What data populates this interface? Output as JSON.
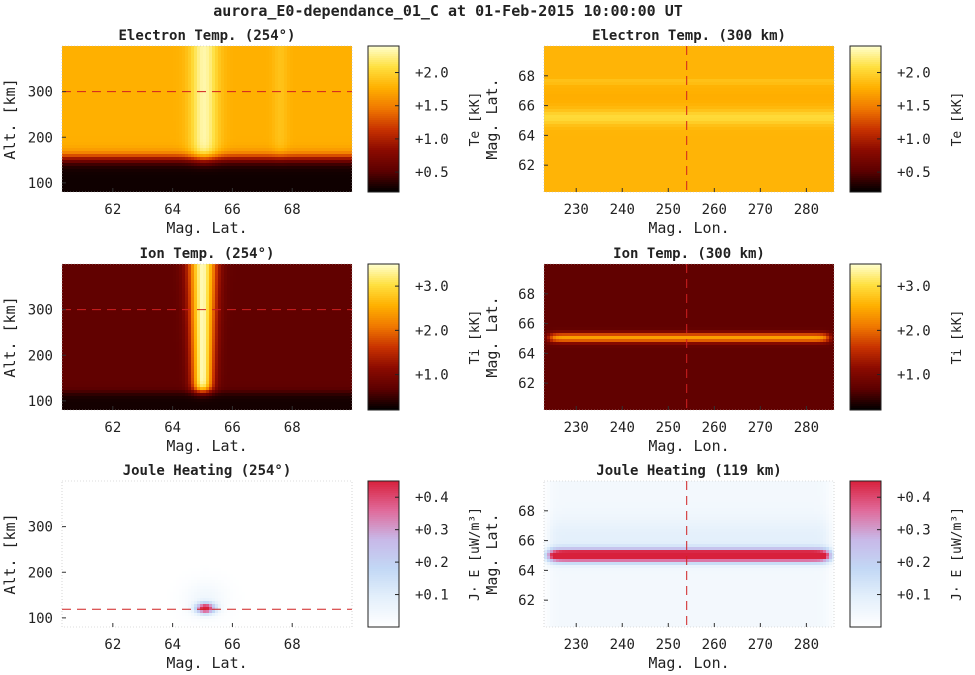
{
  "suptitle": "aurora_E0-dependance_01_C at 01-Feb-2015 10:00:00 UT",
  "colors": {
    "heat_cmap": [
      "#000000",
      "#5c0000",
      "#8b0a00",
      "#c83200",
      "#f07800",
      "#ffb000",
      "#ffe040",
      "#ffffd0"
    ],
    "joule_cmap": [
      "#ffffff",
      "#e4f0fb",
      "#c2d8f5",
      "#c8b8e8",
      "#e06a9a",
      "#d8203c"
    ],
    "cut_line": "#d02020"
  },
  "chart_data": [
    {
      "id": "te_alt",
      "type": "heatmap",
      "title": "Electron Temp. (254°)",
      "xlabel": "Mag. Lat.",
      "ylabel": "Alt. [km]",
      "xlim": [
        60.3,
        70.0
      ],
      "ylim": [
        80,
        400
      ],
      "xticks": [
        62,
        64,
        66,
        68
      ],
      "yticks": [
        100,
        200,
        300
      ],
      "cut": {
        "axis": "y",
        "value": 300
      },
      "colorbar": {
        "label": "Te [kK]",
        "range": [
          0.2,
          2.4
        ],
        "ticks": [
          "+0.5",
          "+1.0",
          "+1.5",
          "+2.0"
        ],
        "tick_values": [
          0.5,
          1.0,
          1.5,
          2.0
        ],
        "cmap": "heat"
      }
    },
    {
      "id": "te_lon",
      "type": "heatmap",
      "title": "Electron Temp. (300 km)",
      "xlabel": "Mag. Lon.",
      "ylabel": "Mag. Lat.",
      "xlim": [
        223,
        286
      ],
      "ylim": [
        60.2,
        70.0
      ],
      "xticks": [
        230,
        240,
        250,
        260,
        270,
        280
      ],
      "yticks": [
        62,
        64,
        66,
        68
      ],
      "cut": {
        "axis": "x",
        "value": 254
      },
      "colorbar": {
        "label": "Te [kK]",
        "range": [
          0.2,
          2.4
        ],
        "ticks": [
          "+0.5",
          "+1.0",
          "+1.5",
          "+2.0"
        ],
        "tick_values": [
          0.5,
          1.0,
          1.5,
          2.0
        ],
        "cmap": "heat"
      }
    },
    {
      "id": "ti_alt",
      "type": "heatmap",
      "title": "Ion Temp. (254°)",
      "xlabel": "Mag. Lat.",
      "ylabel": "Alt. [km]",
      "xlim": [
        60.3,
        70.0
      ],
      "ylim": [
        80,
        400
      ],
      "xticks": [
        62,
        64,
        66,
        68
      ],
      "yticks": [
        100,
        200,
        300
      ],
      "cut": {
        "axis": "y",
        "value": 300
      },
      "colorbar": {
        "label": "Ti [kK]",
        "range": [
          0.2,
          3.5
        ],
        "ticks": [
          "+1.0",
          "+2.0",
          "+3.0"
        ],
        "tick_values": [
          1.0,
          2.0,
          3.0
        ],
        "cmap": "heat"
      }
    },
    {
      "id": "ti_lon",
      "type": "heatmap",
      "title": "Ion Temp. (300 km)",
      "xlabel": "Mag. Lon.",
      "ylabel": "Mag. Lat.",
      "xlim": [
        223,
        286
      ],
      "ylim": [
        60.2,
        70.0
      ],
      "xticks": [
        230,
        240,
        250,
        260,
        270,
        280
      ],
      "yticks": [
        62,
        64,
        66,
        68
      ],
      "cut": {
        "axis": "x",
        "value": 254
      },
      "colorbar": {
        "label": "Ti [kK]",
        "range": [
          0.2,
          3.5
        ],
        "ticks": [
          "+1.0",
          "+2.0",
          "+3.0"
        ],
        "tick_values": [
          1.0,
          2.0,
          3.0
        ],
        "cmap": "heat"
      }
    },
    {
      "id": "jh_alt",
      "type": "heatmap",
      "title": "Joule Heating (254°)",
      "xlabel": "Mag. Lat.",
      "ylabel": "Alt. [km]",
      "xlim": [
        60.3,
        70.0
      ],
      "ylim": [
        80,
        400
      ],
      "xticks": [
        62,
        64,
        66,
        68
      ],
      "yticks": [
        100,
        200,
        300
      ],
      "cut": {
        "axis": "y",
        "value": 119
      },
      "colorbar": {
        "label": "J· E [uW/m³]",
        "range": [
          0.0,
          0.45
        ],
        "ticks": [
          "+0.1",
          "+0.2",
          "+0.3",
          "+0.4"
        ],
        "tick_values": [
          0.1,
          0.2,
          0.3,
          0.4
        ],
        "cmap": "joule"
      }
    },
    {
      "id": "jh_lon",
      "type": "heatmap",
      "title": "Joule Heating (119 km)",
      "xlabel": "Mag. Lon.",
      "ylabel": "Mag. Lat.",
      "xlim": [
        223,
        286
      ],
      "ylim": [
        60.2,
        70.0
      ],
      "xticks": [
        230,
        240,
        250,
        260,
        270,
        280
      ],
      "yticks": [
        62,
        64,
        66,
        68
      ],
      "cut": {
        "axis": "x",
        "value": 254
      },
      "colorbar": {
        "label": "J· E [uW/m³]",
        "range": [
          0.0,
          0.45
        ],
        "ticks": [
          "+0.1",
          "+0.2",
          "+0.3",
          "+0.4"
        ],
        "tick_values": [
          0.1,
          0.2,
          0.3,
          0.4
        ],
        "cmap": "joule"
      }
    }
  ]
}
